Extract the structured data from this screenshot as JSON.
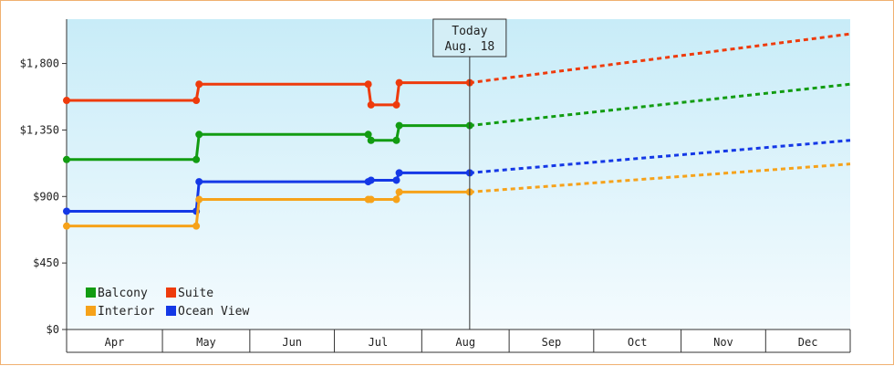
{
  "chart_data": {
    "type": "line",
    "title": "",
    "xlabel": "",
    "ylabel": "",
    "x_categories": [
      "Apr",
      "May",
      "Jun",
      "Jul",
      "Aug",
      "Sep",
      "Oct",
      "Nov",
      "Dec"
    ],
    "x_range": [
      "Mar 28",
      "Dec 31"
    ],
    "ylim": [
      0,
      2100
    ],
    "y_ticks": [
      0,
      450,
      900,
      1350,
      1800
    ],
    "y_tick_labels": [
      "$0",
      "$450",
      "$900",
      "$1,350",
      "$1,800"
    ],
    "grid": false,
    "today_marker": {
      "label": "Today",
      "date_label": "Aug. 18",
      "date": "Aug 18"
    },
    "legend": {
      "placement": "bottom-left"
    },
    "series": [
      {
        "name": "Suite",
        "color": "#ee3b0c",
        "actual": [
          {
            "x": "Mar 28",
            "y": 1550
          },
          {
            "x": "May 13",
            "y": 1550
          },
          {
            "x": "May 14",
            "y": 1660
          },
          {
            "x": "Jul 13",
            "y": 1660
          },
          {
            "x": "Jul 14",
            "y": 1520
          },
          {
            "x": "Jul 23",
            "y": 1520
          },
          {
            "x": "Jul 24",
            "y": 1670
          },
          {
            "x": "Aug 18",
            "y": 1670
          }
        ],
        "forecast_end": {
          "x": "Dec 31",
          "y": 2000
        }
      },
      {
        "name": "Balcony",
        "color": "#129c12",
        "actual": [
          {
            "x": "Mar 28",
            "y": 1150
          },
          {
            "x": "May 13",
            "y": 1150
          },
          {
            "x": "May 14",
            "y": 1320
          },
          {
            "x": "Jul 13",
            "y": 1320
          },
          {
            "x": "Jul 14",
            "y": 1280
          },
          {
            "x": "Jul 23",
            "y": 1280
          },
          {
            "x": "Jul 24",
            "y": 1380
          },
          {
            "x": "Aug 18",
            "y": 1380
          }
        ],
        "forecast_end": {
          "x": "Dec 31",
          "y": 1660
        }
      },
      {
        "name": "Ocean View",
        "color": "#1438e6",
        "actual": [
          {
            "x": "Mar 28",
            "y": 800
          },
          {
            "x": "May 13",
            "y": 800
          },
          {
            "x": "May 14",
            "y": 1000
          },
          {
            "x": "Jul 13",
            "y": 1000
          },
          {
            "x": "Jul 14",
            "y": 1010
          },
          {
            "x": "Jul 23",
            "y": 1010
          },
          {
            "x": "Jul 24",
            "y": 1060
          },
          {
            "x": "Aug 18",
            "y": 1060
          }
        ],
        "forecast_end": {
          "x": "Dec 31",
          "y": 1280
        }
      },
      {
        "name": "Interior",
        "color": "#f6a21a",
        "actual": [
          {
            "x": "Mar 28",
            "y": 700
          },
          {
            "x": "May 13",
            "y": 700
          },
          {
            "x": "May 14",
            "y": 880
          },
          {
            "x": "Jul 13",
            "y": 880
          },
          {
            "x": "Jul 14",
            "y": 880
          },
          {
            "x": "Jul 23",
            "y": 880
          },
          {
            "x": "Jul 24",
            "y": 930
          },
          {
            "x": "Aug 18",
            "y": 930
          }
        ],
        "forecast_end": {
          "x": "Dec 31",
          "y": 1120
        }
      }
    ],
    "legend_order": [
      "Balcony",
      "Suite",
      "Interior",
      "Ocean View"
    ]
  }
}
